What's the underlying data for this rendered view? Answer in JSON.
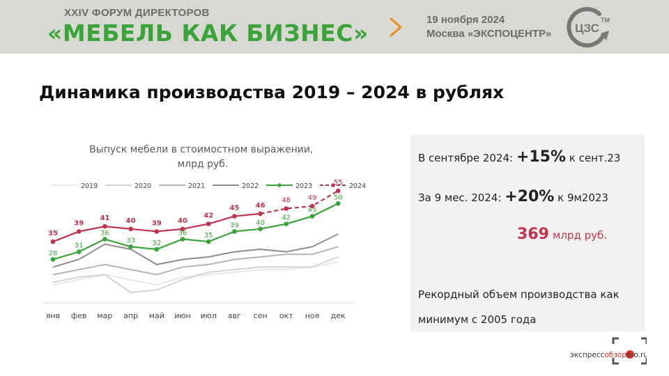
{
  "header": {
    "forum_line1": "XXIV ФОРУМ ДИРЕКТОРОВ",
    "forum_line2": "«МЕБЕЛЬ КАК БИЗНЕС»",
    "event_date": "19 ноября 2024",
    "event_place": "Москва «ЭКСПОЦЕНТР»",
    "logo_text": "ЦЗС",
    "logo_tm": "TM"
  },
  "page_title": "Динамика производства 2019 – 2024 в рублях",
  "info": {
    "sep_prefix": "В сентябре 2024:",
    "sep_value": "+15%",
    "sep_suffix": "к сент.23",
    "ytd_prefix": "За 9 мес. 2024:",
    "ytd_value": "+20%",
    "ytd_suffix": "к 9м2023",
    "total_value": "369",
    "total_unit": "млрд руб.",
    "record_line1": "Рекордный объем производства как",
    "record_line2": "минимум с 2005 года"
  },
  "footer": {
    "source_prefix": "экспресс",
    "source_mid": "обзор",
    "source_site": "e-o.ru"
  },
  "colors": {
    "header_bg": "#d9d9d3",
    "green": "#3aa33a",
    "red": "#c0334d",
    "orange": "#f08a1c"
  },
  "chart_data": {
    "type": "line",
    "title": "Выпуск мебели в стоимостном выражении, млрд руб.",
    "categories": [
      "янв",
      "фев",
      "мар",
      "апр",
      "май",
      "июн",
      "июл",
      "авг",
      "сен",
      "окт",
      "ноя",
      "дек"
    ],
    "ylim": [
      0,
      60
    ],
    "grid": false,
    "legend_position": "top",
    "series": [
      {
        "name": "2019",
        "color": "#e8e8e8",
        "values": [
          18,
          20,
          22,
          20,
          18,
          21,
          22,
          23,
          24,
          24,
          25,
          27
        ],
        "labels": false
      },
      {
        "name": "2020",
        "color": "#d4d4d4",
        "values": [
          19,
          21,
          22,
          15,
          16,
          20,
          23,
          24,
          25,
          25,
          25,
          29
        ],
        "labels": false
      },
      {
        "name": "2021",
        "color": "#b4b4b4",
        "values": [
          22,
          24,
          26,
          24,
          22,
          25,
          26,
          28,
          29,
          30,
          30,
          33
        ],
        "labels": false
      },
      {
        "name": "2022",
        "color": "#8c8c8c",
        "values": [
          25,
          28,
          34,
          32,
          26,
          28,
          29,
          31,
          32,
          31,
          33,
          38
        ],
        "labels": false
      },
      {
        "name": "2023",
        "color": "#3aa33a",
        "values": [
          28,
          31,
          36,
          33,
          32,
          36,
          35,
          39,
          40,
          42,
          45,
          50
        ],
        "labels": true
      },
      {
        "name": "2024",
        "color": "#c0334d",
        "values": [
          35,
          39,
          41,
          40,
          39,
          40,
          42,
          45,
          46,
          48,
          49,
          55
        ],
        "labels": true,
        "dashed_from": 8
      }
    ]
  }
}
